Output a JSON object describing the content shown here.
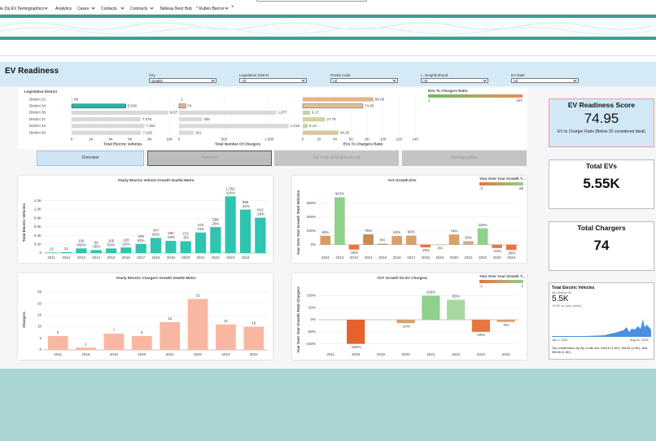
{
  "nav": {
    "items": [
      "le Zip EV Demographics",
      "Analytics",
      "Cases",
      "Contacts",
      "Contracts",
      "Tableau Next Hub",
      "* Ruben Barron"
    ]
  },
  "dashboard": {
    "title": "EV Readiness",
    "filters": [
      {
        "label": "City",
        "value": "Seattle"
      },
      {
        "label": "Legislative District",
        "value": "All"
      },
      {
        "label": "Postal Code",
        "value": "All"
      },
      {
        "label": "L. Neighborhood",
        "value": "All"
      },
      {
        "label": "EV Date",
        "value": "All"
      }
    ],
    "tabs": [
      "Overview",
      "Forecast",
      "Zip Code & Neighborhood",
      "Demographics"
    ],
    "kpis": [
      {
        "title": "EV Readiness Score",
        "value": "74.95",
        "caption": "EV to Charger Ratio (Below 20 considered ideal)"
      },
      {
        "title": "Total EVs",
        "value": "5.55K"
      },
      {
        "title": "Total Chargers",
        "value": "74"
      }
    ],
    "insight": {
      "title": "Total Electric Vehicles",
      "subtitle": "All, District 34",
      "value": "5.5K",
      "change": "+5.5K vs. prior period",
      "start": "Jan 1, 2011",
      "end": "Aug 31, 2024",
      "summary": "Top contributors by Zip Code are: 98116 (1.6K), 98126 (1.5K), and 98106 (1.5K)."
    }
  },
  "chart_data": [
    {
      "type": "hbar",
      "category_title": "Legislative District",
      "categories": [
        "District 22",
        "District 34",
        "District 36",
        "District 37",
        "District 43",
        "District 46"
      ],
      "values": [
        88,
        5548,
        9875,
        7076,
        7461,
        7129
      ],
      "value_labels": [
        "88",
        "5,548",
        "9,875",
        "7,076",
        "7,461",
        "7,129"
      ],
      "colors": [
        "#d9d9d9",
        "#2ab3a3",
        "#d9d9d9",
        "#d9d9d9",
        "#d9d9d9",
        "#d9d9d9"
      ],
      "xlabel": "Total Electric Vehicles",
      "xlim": [
        0,
        10500
      ],
      "xticks": [
        0,
        {
          "value": 2000,
          "label": "2K"
        },
        {
          "value": 4000,
          "label": "4K"
        },
        {
          "value": 6000,
          "label": "6K"
        },
        {
          "value": 8000,
          "label": "8K"
        },
        {
          "value": 10000,
          "label": "10K"
        }
      ]
    },
    {
      "type": "hbar",
      "values": [
        1,
        74,
        1077,
        255,
        1216,
        161
      ],
      "value_labels": [
        "1",
        "74",
        "1,077",
        "255",
        "1,216",
        "161"
      ],
      "colors": [
        "#d9d9d9",
        "#d8b48c",
        "#d9d9d9",
        "#d9d9d9",
        "#d9d9d9",
        "#d9d9d9"
      ],
      "xlabel": "Total Number Of Chargers",
      "xlim": [
        0,
        1300
      ],
      "xticks": [
        0,
        500,
        {
          "value": 1000,
          "label": "1,000"
        }
      ]
    },
    {
      "type": "hbar",
      "values": [
        88,
        74.95,
        9.17,
        27.75,
        6.13,
        44.28
      ],
      "value_labels": [
        "88.00",
        "74.95",
        "9.17",
        "27.75",
        "6.13",
        "44.28"
      ],
      "colors": [
        "#e4b48a",
        "#dfbf95",
        "#bfd8a0",
        "#cfd3a0",
        "#bbd9a0",
        "#d8c79a"
      ],
      "xlabel": "EVs To Chargers Ratio",
      "xlim": [
        0,
        150
      ],
      "xticks": [
        0,
        20,
        40,
        60,
        80,
        100,
        120,
        140
      ],
      "legend": {
        "title": "EVs To Chargers Ratio",
        "ticks": [
          1,
          197
        ],
        "colors": [
          "#6cc25c",
          "#f08a5a"
        ]
      }
    },
    {
      "type": "vbar",
      "title": "Yearly Electric Vehicle Growth Seattle Metro",
      "ylabel": "Total Electric Vehicles",
      "categories": [
        "2011",
        "2012",
        "2013",
        "2014",
        "2015",
        "2016",
        "2017",
        "2018",
        "2019",
        "2020",
        "2021",
        "2022",
        "2023",
        "2024",
        null
      ],
      "values": [
        13,
        21,
        106,
        69,
        105,
        128,
        209,
        347,
        280,
        272,
        472,
        596,
        1302,
        996,
        812
      ],
      "value_labels": [
        "13",
        "21",
        "106",
        "69",
        "105",
        "128",
        "209",
        "347",
        "280",
        "272",
        "472",
        "596",
        "1,302",
        "996",
        "812"
      ],
      "growth_labels": [
        null,
        null,
        "342%",
        "-35%",
        "52%",
        "22%",
        "63%",
        "66%",
        "-19%",
        "-3%",
        "73%",
        "26%",
        "118%",
        "-24%",
        "-18%"
      ],
      "color": "#2ec4b0",
      "ylim": [
        0,
        1400
      ],
      "yticks": [
        0,
        {
          "value": 200,
          "label": "0.2K"
        },
        {
          "value": 400,
          "label": "0.4K"
        },
        {
          "value": 600,
          "label": "0.6K"
        },
        {
          "value": 800,
          "label": "0.8K"
        },
        {
          "value": 1000,
          "label": "1.0K"
        },
        {
          "value": 1200,
          "label": "1.2K"
        }
      ]
    },
    {
      "type": "vbar",
      "title": "YoY Growth EVs",
      "ylabel": "Year Over Year Growth Total Vehicles",
      "categories": [
        "2011",
        "2012",
        "2013",
        "2014",
        "2015",
        "2016",
        "2017",
        "2018",
        "2019",
        "2020",
        "2021",
        "2022",
        "2023",
        "2024"
      ],
      "values": [
        65,
        342,
        -35,
        75,
        8,
        63,
        66,
        -19,
        -3,
        74,
        26,
        118,
        -24,
        -38
      ],
      "value_labels": [
        "65%",
        "342%",
        "-35%",
        "75%",
        "8%",
        "63%",
        "66%",
        "-19%",
        "-3%",
        "74%",
        "26%",
        "118%",
        "-24%",
        "-38%"
      ],
      "colors": [
        "#d99a5e",
        "#8fd18a",
        "#e8763e",
        "#c98a55",
        "#c9a47a",
        "#d9a06a",
        "#d9a06a",
        "#e8763e",
        "#e0905a",
        "#d9a06a",
        "#d9a88a",
        "#8fd18a",
        "#e8763e",
        "#e8763e"
      ],
      "ylim": [
        -60,
        380
      ],
      "yticks": [
        {
          "value": 0,
          "label": "0%"
        },
        {
          "value": 100,
          "label": "100%"
        },
        {
          "value": 200,
          "label": "200%"
        },
        {
          "value": 300,
          "label": "300%"
        }
      ],
      "legend": {
        "title": "Year Over Year Growth T...",
        "ticks": [
          -2,
          68
        ],
        "colors": [
          "#e8763e",
          "#8fd18a"
        ]
      }
    },
    {
      "type": "vbar",
      "title": "Yearly Electric Chargers Growth Seattle Metro",
      "ylabel": "Chargers",
      "categories": [
        "2011",
        "2018",
        "2019",
        "2020",
        "2021",
        "2022",
        "2023",
        "2024"
      ],
      "values": [
        6,
        1,
        7,
        6,
        12,
        22,
        11,
        10
      ],
      "color": "#f9b7a2",
      "ylim": [
        0,
        26
      ],
      "yticks": [
        0,
        5,
        10,
        15,
        20,
        25
      ]
    },
    {
      "type": "vbar",
      "title": "YOY Growth for EV Chargers",
      "ylabel": "Year Over Year Growth Total Chargers",
      "categories": [
        "2011",
        "2018",
        "2019",
        "2020",
        "2021",
        "2022",
        "2023",
        "2024"
      ],
      "values": [
        null,
        -100,
        null,
        -14,
        100,
        83,
        -50,
        -9
      ],
      "value_labels": [
        null,
        "-100%",
        null,
        "-14%",
        "100%",
        "83%",
        "-50%",
        "-9%"
      ],
      "colors": [
        null,
        "#e8602c",
        null,
        "#d9a06a",
        "#8fd18a",
        "#a8d8a0",
        "#e8763e",
        "#d9a06a"
      ],
      "ylim": [
        -125,
        125
      ],
      "yticks": [
        {
          "value": -100,
          "label": "-100%"
        },
        {
          "value": -50,
          "label": "-50%"
        },
        {
          "value": 0,
          "label": "0%"
        },
        {
          "value": 50,
          "label": "50%"
        },
        {
          "value": 100,
          "label": "100%"
        }
      ],
      "legend": {
        "title": "Year Over Year Growth T...",
        "ticks": [
          -1,
          1
        ],
        "colors": [
          "#e8763e",
          "#8fd18a"
        ]
      }
    }
  ]
}
